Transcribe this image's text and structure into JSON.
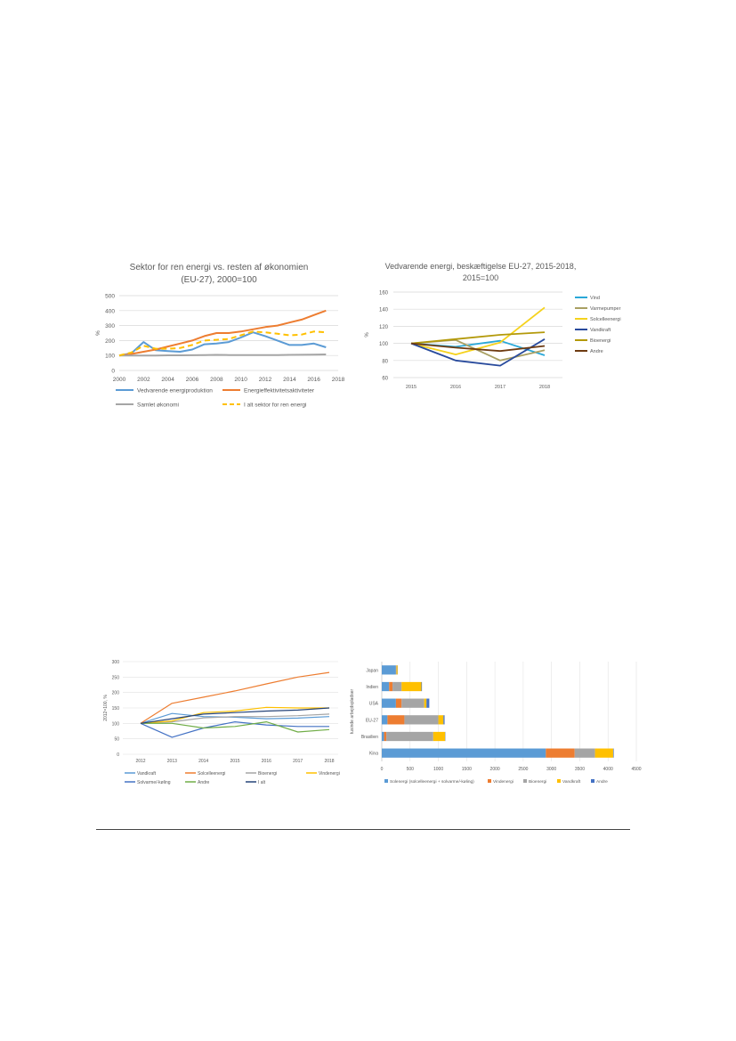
{
  "chart_data": [
    {
      "type": "line",
      "title": "Sektor for ren energi vs. resten af økonomien",
      "subtitle": "(EU-27), 2000=100",
      "ylabel": "%",
      "xlabel": "",
      "ylim": [
        0,
        500
      ],
      "yticks": [
        0,
        100,
        200,
        300,
        400,
        500
      ],
      "xlim": [
        2000,
        2018
      ],
      "xticks": [
        2000,
        2002,
        2004,
        2006,
        2008,
        2010,
        2012,
        2014,
        2016,
        2018
      ],
      "grid": true,
      "legend_position": "bottom",
      "x": [
        2000,
        2001,
        2002,
        2003,
        2004,
        2005,
        2006,
        2007,
        2008,
        2009,
        2010,
        2011,
        2012,
        2013,
        2014,
        2015,
        2016,
        2017
      ],
      "series": [
        {
          "name": "Vedvarende energiproduktion",
          "color": "#5b9bd5",
          "dash": false,
          "values": [
            100,
            115,
            190,
            135,
            130,
            125,
            140,
            175,
            180,
            190,
            220,
            255,
            230,
            200,
            170,
            170,
            180,
            155
          ]
        },
        {
          "name": "Energieffektivitetsaktiviteter",
          "color": "#ed7d31",
          "dash": false,
          "values": [
            100,
            110,
            125,
            140,
            160,
            180,
            200,
            230,
            250,
            250,
            260,
            275,
            290,
            300,
            320,
            340,
            370,
            400
          ]
        },
        {
          "name": "Samlet økonomi",
          "color": "#a5a5a5",
          "dash": false,
          "values": [
            100,
            100,
            100,
            100,
            101,
            101,
            102,
            103,
            104,
            103,
            103,
            103,
            103,
            103,
            104,
            105,
            106,
            107
          ]
        },
        {
          "name": "I alt sektor for ren energi",
          "color": "#ffc000",
          "dash": true,
          "values": [
            100,
            120,
            165,
            145,
            145,
            150,
            170,
            200,
            205,
            210,
            235,
            260,
            255,
            245,
            235,
            240,
            260,
            255
          ]
        }
      ]
    },
    {
      "type": "line",
      "title": "Vedvarende energi, beskæftigelse EU-27, 2015-2018,",
      "subtitle": "2015=100",
      "ylabel": "%",
      "xlabel": "",
      "ylim": [
        60,
        160
      ],
      "yticks": [
        60,
        80,
        100,
        120,
        140,
        160
      ],
      "categories": [
        "2015",
        "2016",
        "2017",
        "2018"
      ],
      "grid": true,
      "legend_position": "right",
      "series": [
        {
          "name": "Vind",
          "color": "#2aa8d8",
          "values": [
            100,
            96,
            103,
            86
          ]
        },
        {
          "name": "Varmepumper",
          "color": "#a9a063",
          "values": [
            100,
            104,
            80,
            92
          ]
        },
        {
          "name": "Solcelleenergi",
          "color": "#f5d21d",
          "values": [
            100,
            87,
            101,
            142
          ]
        },
        {
          "name": "Vandkraft",
          "color": "#284a9c",
          "values": [
            100,
            80,
            74,
            105
          ]
        },
        {
          "name": "Bioenergi",
          "color": "#b3990a",
          "values": [
            100,
            105,
            110,
            113
          ]
        },
        {
          "name": "Andre",
          "color": "#6e3b12",
          "values": [
            100,
            95,
            91,
            97
          ]
        }
      ]
    },
    {
      "type": "line",
      "title": "",
      "ylabel": "2012=100, %",
      "xlabel": "",
      "ylim": [
        0,
        300
      ],
      "yticks": [
        0,
        50,
        100,
        150,
        200,
        250,
        300
      ],
      "categories": [
        "2012",
        "2013",
        "2014",
        "2015",
        "2016",
        "2017",
        "2018"
      ],
      "grid": true,
      "legend_position": "bottom",
      "series": [
        {
          "name": "Vandkraft",
          "color": "#5b9bd5",
          "values": [
            100,
            132,
            122,
            120,
            115,
            117,
            122
          ]
        },
        {
          "name": "Solcelleenergi",
          "color": "#ed7d31",
          "values": [
            100,
            165,
            185,
            205,
            228,
            250,
            265
          ]
        },
        {
          "name": "Bioenergi",
          "color": "#a5a5a5",
          "values": [
            100,
            105,
            118,
            122,
            122,
            125,
            130
          ]
        },
        {
          "name": "Vindenergi",
          "color": "#ffc000",
          "values": [
            100,
            108,
            135,
            140,
            152,
            150,
            150
          ]
        },
        {
          "name": "Solvarme/-køling",
          "color": "#4472c4",
          "values": [
            100,
            55,
            85,
            105,
            95,
            90,
            90
          ]
        },
        {
          "name": "Andre",
          "color": "#70ad47",
          "values": [
            100,
            100,
            85,
            90,
            105,
            72,
            80
          ]
        },
        {
          "name": "I alt",
          "color": "#264478",
          "values": [
            100,
            115,
            130,
            135,
            140,
            143,
            150
          ]
        }
      ]
    },
    {
      "type": "bar",
      "orientation": "horizontal",
      "stacked": true,
      "title": "",
      "ylabel": "tusinde arbejdspladser",
      "xlabel": "",
      "xlim": [
        0,
        4500
      ],
      "xticks": [
        0,
        500,
        1000,
        1500,
        2000,
        2500,
        3000,
        3500,
        4000,
        4500
      ],
      "grid": true,
      "legend_position": "bottom",
      "categories": [
        "Japan",
        "Indien",
        "USA",
        "EU-27",
        "Brasilien",
        "Kina"
      ],
      "series": [
        {
          "name": "Solenergi (solcelleenergi + solvarme/-køling)",
          "color": "#5b9bd5",
          "values": [
            250,
            130,
            250,
            100,
            40,
            2900
          ]
        },
        {
          "name": "Vindenergi",
          "color": "#ed7d31",
          "values": [
            5,
            60,
            100,
            300,
            40,
            510
          ]
        },
        {
          "name": "Bioenergi",
          "color": "#a5a5a5",
          "values": [
            5,
            160,
            400,
            600,
            830,
            360
          ]
        },
        {
          "name": "Vandkraft",
          "color": "#ffc000",
          "values": [
            20,
            350,
            40,
            90,
            210,
            320
          ]
        },
        {
          "name": "Andre",
          "color": "#4472c4",
          "values": [
            3,
            10,
            50,
            20,
            5,
            10
          ]
        }
      ]
    }
  ]
}
